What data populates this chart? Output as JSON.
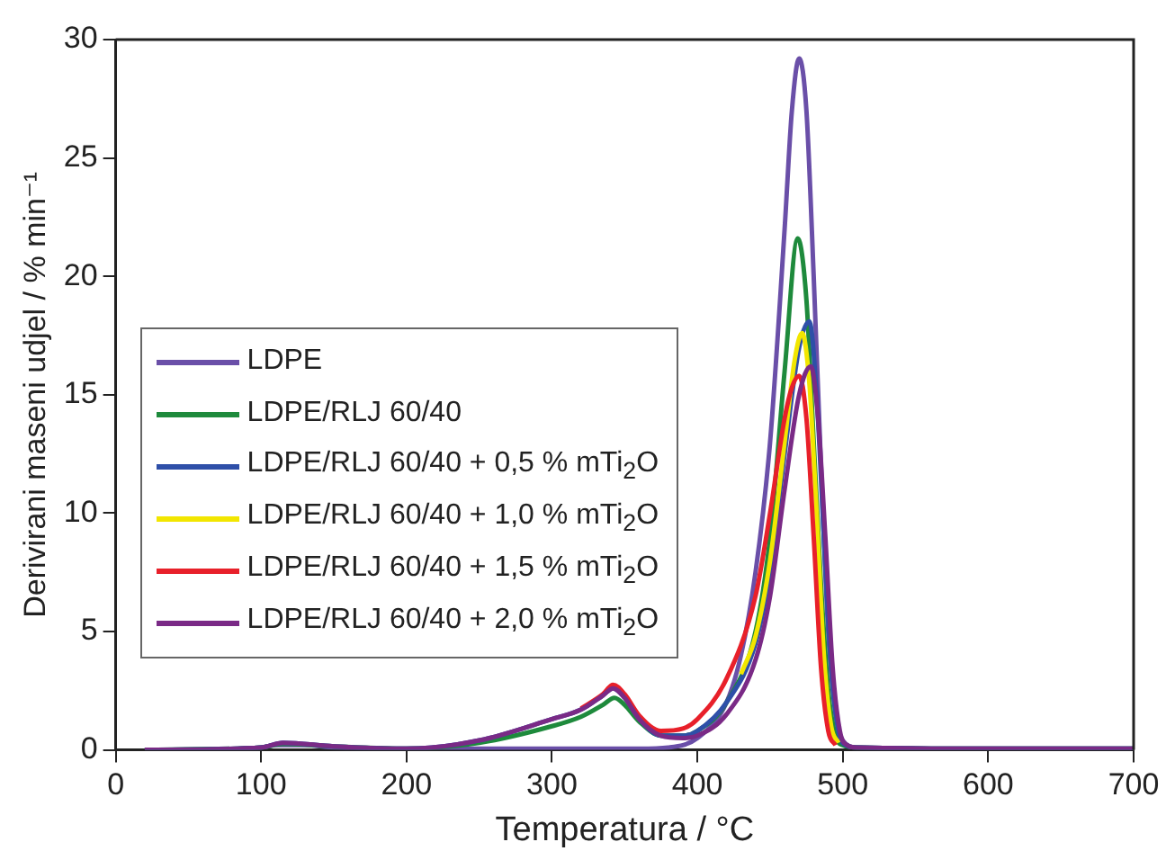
{
  "chart_data": {
    "type": "line",
    "xlabel": "Temperatura / °C",
    "ylabel": "Derivirani maseni udjel / % min⁻¹",
    "xlim": [
      0,
      700
    ],
    "xticks": [
      0,
      100,
      200,
      300,
      400,
      500,
      600,
      700
    ],
    "ylim": [
      0,
      30
    ],
    "yticks": [
      0,
      5,
      10,
      15,
      20,
      25,
      30
    ],
    "grid": false,
    "legend": "left",
    "marker": "none",
    "line_style": "solid",
    "series": [
      {
        "name": "LDPE",
        "color": "#6a4fa8",
        "x": [
          20,
          100,
          110,
          130,
          150,
          200,
          300,
          360,
          380,
          400,
          420,
          430,
          440,
          450,
          460,
          465,
          470,
          475,
          480,
          485,
          490,
          495,
          500,
          510,
          600,
          700
        ],
        "values": [
          0,
          0.1,
          0.2,
          0.2,
          0.1,
          0.05,
          0.05,
          0.05,
          0.1,
          0.5,
          2,
          4,
          7.5,
          13,
          22,
          27,
          29.2,
          27,
          20,
          12,
          5,
          1.5,
          0.4,
          0.1,
          0.05,
          0.05
        ]
      },
      {
        "name": "LDPE/RLJ 60/40",
        "color": "#1e8a3c",
        "x": [
          20,
          100,
          115,
          150,
          200,
          250,
          300,
          320,
          335,
          343,
          350,
          360,
          375,
          390,
          400,
          420,
          440,
          450,
          460,
          469,
          475,
          480,
          485,
          490,
          495,
          500,
          510,
          600,
          700
        ],
        "values": [
          0,
          0.1,
          0.25,
          0.15,
          0.05,
          0.3,
          1.0,
          1.4,
          1.9,
          2.2,
          1.9,
          1.2,
          0.6,
          0.6,
          0.8,
          2,
          5,
          9,
          16,
          21.6,
          19,
          13,
          7,
          2.5,
          0.6,
          0.2,
          0.1,
          0.05,
          0.05
        ]
      },
      {
        "name": "LDPE/RLJ 60/40 + 0,5 % mTi$_{2}$O",
        "color": "#2e4fa8",
        "x": [
          20,
          100,
          115,
          150,
          200,
          250,
          300,
          320,
          335,
          342,
          350,
          360,
          375,
          390,
          400,
          420,
          440,
          450,
          460,
          470,
          477,
          482,
          487,
          492,
          497,
          502,
          510,
          600,
          700
        ],
        "values": [
          0,
          0.1,
          0.3,
          0.15,
          0.05,
          0.4,
          1.3,
          1.7,
          2.3,
          2.6,
          2.2,
          1.3,
          0.6,
          0.6,
          0.8,
          2,
          4.5,
          7.5,
          12.5,
          17,
          18.1,
          15,
          9,
          3.5,
          0.8,
          0.2,
          0.1,
          0.05,
          0.05
        ]
      },
      {
        "name": "LDPE/RLJ 60/40 + 1,0 % mTi$_{2}$O",
        "color": "#f2e600",
        "x": [
          430,
          440,
          450,
          460,
          467,
          472,
          477,
          482,
          487,
          492,
          497
        ],
        "values": [
          3.2,
          4.8,
          8,
          13,
          16.5,
          17.6,
          15.5,
          10,
          4,
          1,
          0.3
        ]
      },
      {
        "name": "LDPE/RLJ 60/40 + 1,5 % mTi$_{2}$O",
        "color": "#e8202a",
        "x": [
          320,
          335,
          342,
          350,
          360,
          375,
          390,
          400,
          420,
          440,
          450,
          460,
          465,
          470,
          475,
          480,
          485,
          490,
          495
        ],
        "values": [
          1.75,
          2.35,
          2.75,
          2.35,
          1.45,
          0.8,
          0.9,
          1.3,
          3,
          6.5,
          10,
          14,
          15.3,
          15.8,
          14,
          9,
          3.5,
          0.8,
          0.2
        ]
      },
      {
        "name": "LDPE/RLJ 60/40 + 2,0 % mTi$_{2}$O",
        "color": "#7a2a86",
        "x": [
          20,
          100,
          115,
          150,
          200,
          250,
          300,
          320,
          335,
          342,
          350,
          360,
          375,
          390,
          400,
          420,
          440,
          450,
          460,
          470,
          478,
          483,
          488,
          493,
          498,
          503,
          510,
          600,
          700
        ],
        "values": [
          0,
          0.1,
          0.3,
          0.15,
          0.05,
          0.4,
          1.3,
          1.7,
          2.3,
          2.6,
          2.2,
          1.3,
          0.6,
          0.5,
          0.6,
          1.5,
          3.8,
          6.5,
          11,
          15,
          16.2,
          14,
          9,
          3.5,
          0.8,
          0.2,
          0.1,
          0.05,
          0.05
        ]
      }
    ]
  }
}
